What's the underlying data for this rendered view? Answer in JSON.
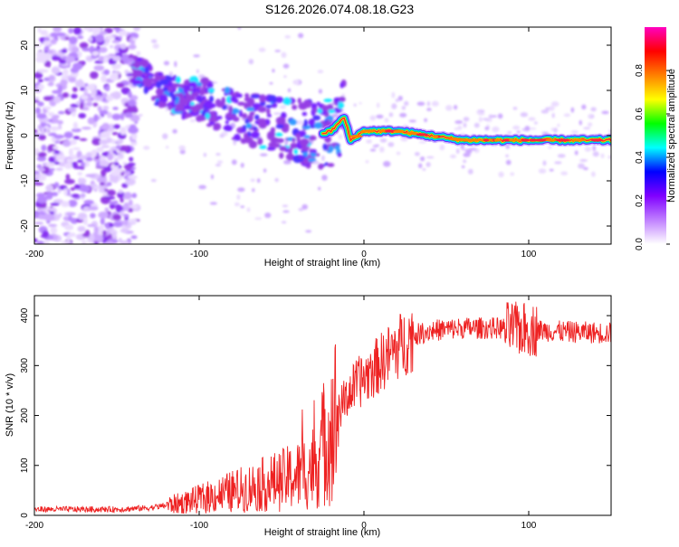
{
  "title": "S126.2026.074.08.18.G23",
  "chart_data": [
    {
      "type": "heatmap",
      "xlabel": "Height of straight line (km)",
      "ylabel": "Frequency (Hz)",
      "xlim": [
        -200,
        150
      ],
      "ylim": [
        -24,
        24
      ],
      "xticks": [
        -200,
        -100,
        0,
        100
      ],
      "yticks": [
        -20,
        -10,
        0,
        10,
        20
      ],
      "colorbar": {
        "label": "Normalized spectral amplitude",
        "range": [
          0,
          1
        ],
        "ticks": [
          0.0,
          0.2,
          0.4,
          0.6,
          0.8
        ],
        "colors": [
          "#ffffff",
          "#c080ff",
          "#8000ff",
          "#0000ff",
          "#00ffff",
          "#00ff00",
          "#ffff00",
          "#ff8000",
          "#ff0000",
          "#ff00c0"
        ]
      },
      "ridge": {
        "x": [
          -140,
          -120,
          -100,
          -80,
          -60,
          -40,
          -30,
          -20,
          -12,
          -8,
          0,
          20,
          40,
          60,
          80,
          100,
          120,
          150
        ],
        "y": [
          15,
          9,
          8,
          5,
          3,
          1,
          0,
          1,
          4,
          -1,
          1,
          1,
          0,
          -1,
          -1,
          -1,
          -1,
          -1
        ]
      }
    },
    {
      "type": "line",
      "xlabel": "Height of straight line (km)",
      "ylabel": "SNR (10 * v/v)",
      "xlim": [
        -200,
        150
      ],
      "ylim": [
        0,
        440
      ],
      "xticks": [
        -200,
        -100,
        0,
        100
      ],
      "yticks": [
        0,
        100,
        200,
        300,
        400
      ],
      "color": "#ee2222",
      "envelope": {
        "x": [
          -200,
          -150,
          -130,
          -110,
          -90,
          -70,
          -50,
          -40,
          -30,
          -25,
          -20,
          -15,
          -10,
          -5,
          0,
          10,
          20,
          30,
          40,
          60,
          80,
          100,
          120,
          150
        ],
        "y": [
          12,
          12,
          15,
          25,
          40,
          55,
          70,
          80,
          100,
          140,
          180,
          210,
          240,
          260,
          275,
          305,
          335,
          360,
          370,
          375,
          375,
          372,
          368,
          365
        ]
      }
    }
  ]
}
